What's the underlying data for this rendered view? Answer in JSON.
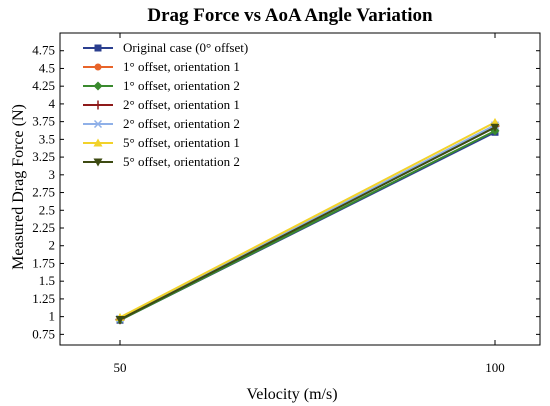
{
  "chart_data": {
    "type": "line",
    "title": "Drag Force vs AoA Angle Variation",
    "xlabel": "Velocity (m/s)",
    "ylabel": "Measured Drag Force (N)",
    "x": [
      50,
      100
    ],
    "xticks": [
      "50",
      "100"
    ],
    "xlim": [
      42,
      106
    ],
    "ylim": [
      0.6,
      5.0
    ],
    "yticks": [
      "0.75",
      "1",
      "1.25",
      "1.5",
      "1.75",
      "2",
      "2.25",
      "2.5",
      "2.75",
      "3",
      "3.25",
      "3.5",
      "3.75",
      "4",
      "4.25",
      "4.5",
      "4.75"
    ],
    "grid": false,
    "legend": "top-left",
    "series": [
      {
        "name": "Original case (0° offset)",
        "values": [
          0.95,
          3.6
        ],
        "color": "#2b3f8f",
        "marker": "square"
      },
      {
        "name": "1° offset, orientation 1",
        "values": [
          0.96,
          3.68
        ],
        "color": "#e8642a",
        "marker": "circle"
      },
      {
        "name": "1° offset, orientation 2",
        "values": [
          0.95,
          3.62
        ],
        "color": "#3a8a2e",
        "marker": "diamond"
      },
      {
        "name": "2° offset, orientation 1",
        "values": [
          0.96,
          3.69
        ],
        "color": "#8e1a1a",
        "marker": "plus"
      },
      {
        "name": "2° offset, orientation 2",
        "values": [
          0.97,
          3.7
        ],
        "color": "#8fb0e8",
        "marker": "x"
      },
      {
        "name": "5° offset, orientation 1",
        "values": [
          0.99,
          3.74
        ],
        "color": "#f2d22a",
        "marker": "triangle-up"
      },
      {
        "name": "5° offset, orientation 2",
        "values": [
          0.96,
          3.67
        ],
        "color": "#3d4a12",
        "marker": "triangle-down"
      }
    ]
  }
}
